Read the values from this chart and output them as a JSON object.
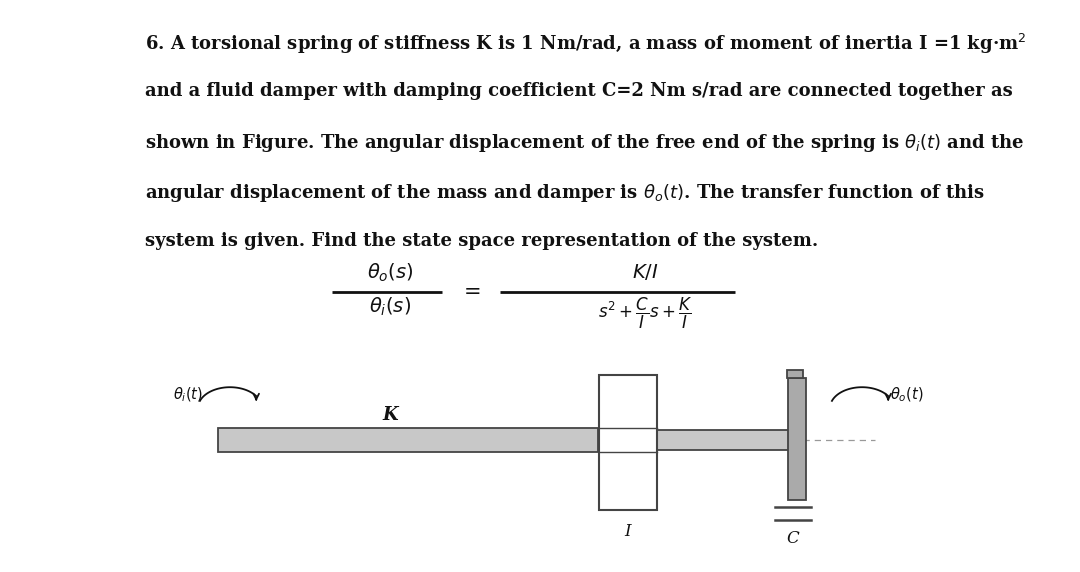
{
  "bg_color": "#ffffff",
  "text_color": "#111111",
  "fig_width": 10.8,
  "fig_height": 5.72,
  "lines": [
    "6. A torsional spring of stiffness K is 1 Nm/rad, a mass of moment of inertia I =1 kg·m$^2$",
    "and a fluid damper with damping coefficient C=2 Nm s/rad are connected together as",
    "shown in Figure. The angular displacement of the free end of the spring is $\\theta_i(t)$ and the",
    "angular displacement of the mass and damper is $\\theta_o(t)$. The transfer function of this",
    "system is given. Find the state space representation of the system."
  ],
  "font_body": 13.0,
  "font_math": 13.0,
  "font_diagram": 11.0
}
